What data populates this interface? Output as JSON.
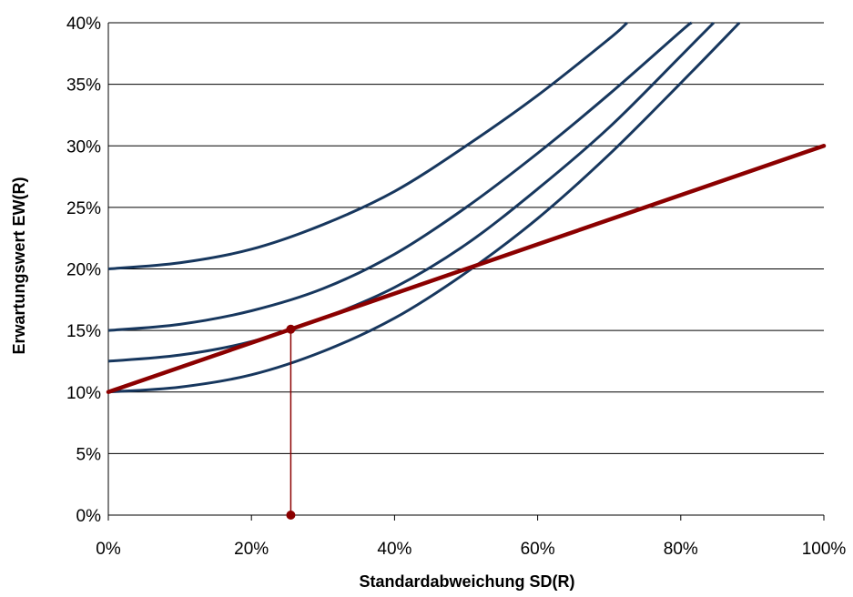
{
  "chart_data": {
    "type": "line",
    "xlabel": "Standardabweichung SD(R)",
    "ylabel": "Erwartungswert EW(R)",
    "xlim": [
      0,
      100
    ],
    "ylim": [
      0,
      40
    ],
    "x_ticks": [
      0,
      20,
      40,
      60,
      80,
      100
    ],
    "y_ticks": [
      0,
      5,
      10,
      15,
      20,
      25,
      30,
      35,
      40
    ],
    "x_tick_labels": [
      "0%",
      "20%",
      "40%",
      "60%",
      "80%",
      "100%"
    ],
    "y_tick_labels": [
      "0%",
      "5%",
      "10%",
      "15%",
      "20%",
      "25%",
      "30%",
      "35%",
      "40%"
    ],
    "grid": "horizontal",
    "legend": "none",
    "colors": {
      "curves": "#17375e",
      "line": "#8b0000",
      "grid": "#000000"
    },
    "series": [
      {
        "kind": "curve",
        "x": [
          0,
          10,
          20,
          30,
          40,
          50,
          60,
          70,
          72.5
        ],
        "y": [
          20,
          20.5,
          21.6,
          23.6,
          26.3,
          30,
          34.1,
          38.7,
          40
        ]
      },
      {
        "kind": "curve",
        "x": [
          0,
          10,
          20,
          30,
          40,
          50,
          60,
          70,
          80,
          81.5
        ],
        "y": [
          15,
          15.5,
          16.6,
          18.4,
          21.2,
          25,
          29.4,
          34.2,
          39.3,
          40
        ]
      },
      {
        "kind": "curve",
        "x": [
          0,
          10,
          20,
          30,
          40,
          50,
          60,
          70,
          80,
          84.6
        ],
        "y": [
          12.5,
          13.0,
          14.1,
          16.0,
          18.5,
          22.0,
          26.5,
          31.5,
          37.3,
          40
        ]
      },
      {
        "kind": "curve",
        "x": [
          0,
          10,
          20,
          30,
          40,
          50,
          60,
          70,
          80,
          88.2
        ],
        "y": [
          10,
          10.4,
          11.4,
          13.3,
          16.0,
          19.7,
          24.1,
          29.3,
          35.1,
          40
        ]
      },
      {
        "kind": "line",
        "x": [
          0,
          100
        ],
        "y": [
          10,
          30
        ]
      },
      {
        "kind": "drop",
        "x": [
          25.5,
          25.5
        ],
        "y": [
          0,
          15.1
        ]
      }
    ]
  }
}
